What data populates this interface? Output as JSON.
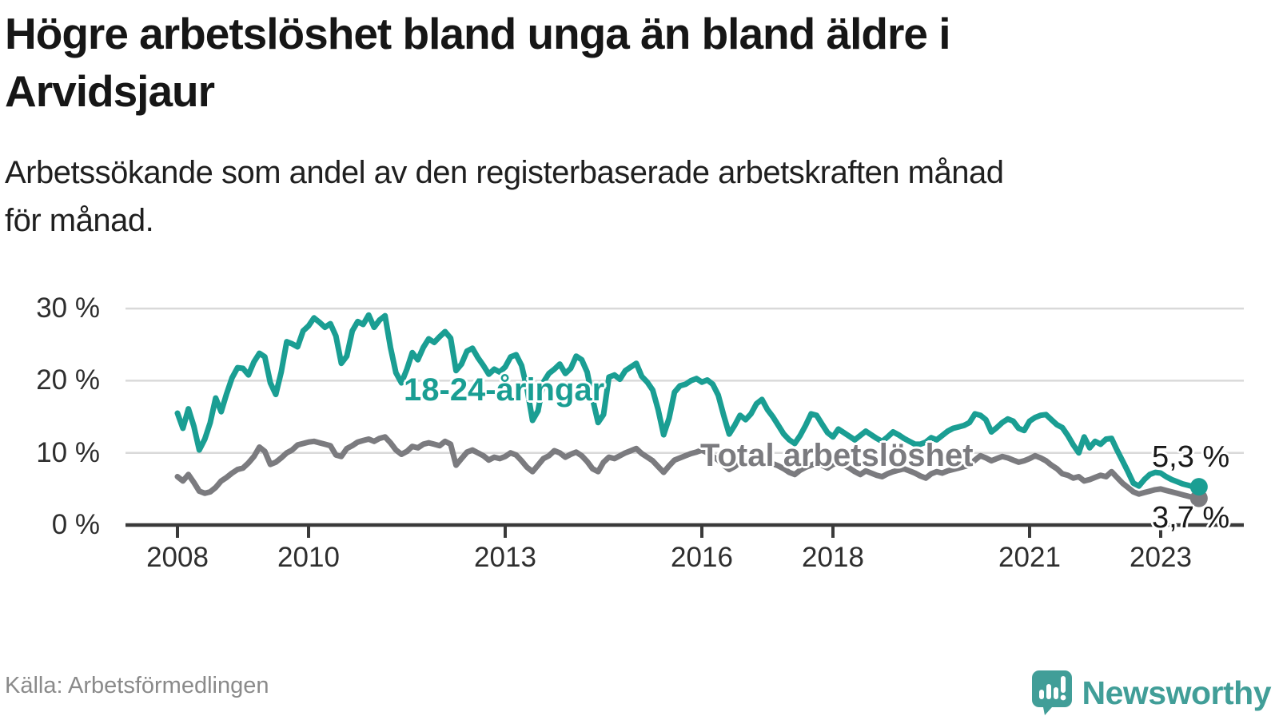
{
  "header": {
    "title_line1": "Högre arbetslöshet bland unga än bland äldre i",
    "title_line2": "Arvidsjaur",
    "subtitle_line1": "Arbetssökande som andel av den registerbaserade arbetskraften månad",
    "subtitle_line2": "för månad."
  },
  "footer": {
    "source": "Källa: Arbetsförmedlingen",
    "logo_text": "Newsworthy"
  },
  "colors": {
    "youth": "#1a9e93",
    "total": "#7b7b7f",
    "grid": "#d9d9d9",
    "axis": "#3a3a3a",
    "tick_label": "#2e2e2e",
    "value_label": "#1a1a1a",
    "logo": "#419e98"
  },
  "chart_data": {
    "type": "line",
    "title": "Högre arbetslöshet bland unga än bland äldre i Arvidsjaur",
    "subtitle": "Arbetssökande som andel av den registerbaserade arbetskraften månad för månad.",
    "xlabel": "",
    "ylabel": "",
    "x_start": "2008-01",
    "x_end": "2023-08",
    "x_frequency": "monthly",
    "x_tick_years": [
      2008,
      2010,
      2013,
      2016,
      2018,
      2021,
      2023
    ],
    "y_ticks": [
      {
        "value": 0,
        "label": "0 %"
      },
      {
        "value": 10,
        "label": "10 %"
      },
      {
        "value": 20,
        "label": "20 %"
      },
      {
        "value": 30,
        "label": "30 %"
      }
    ],
    "ylim": [
      0,
      31
    ],
    "grid": "horizontal",
    "legend_position": "inline-labels",
    "series": [
      {
        "name": "18-24-åringar",
        "color": "#1a9e93",
        "end_label": "5,3 %",
        "last_value": 5.3,
        "values": [
          15.5,
          13.4,
          16.1,
          13.7,
          10.4,
          11.9,
          14.2,
          17.6,
          15.7,
          18.2,
          20.4,
          21.8,
          21.7,
          20.8,
          22.6,
          23.8,
          23.3,
          19.7,
          18.1,
          21.2,
          25.4,
          25.1,
          24.7,
          26.9,
          27.6,
          28.7,
          28.1,
          27.4,
          27.9,
          26.2,
          22.4,
          23.4,
          26.9,
          28.2,
          27.8,
          29.1,
          27.4,
          28.4,
          29.0,
          24.6,
          21.1,
          19.7,
          21.6,
          23.9,
          22.9,
          24.6,
          25.8,
          25.3,
          26.1,
          26.8,
          25.9,
          21.4,
          22.3,
          24.1,
          24.5,
          23.2,
          22.1,
          20.9,
          21.6,
          21.2,
          21.9,
          23.3,
          23.6,
          22.1,
          18.9,
          14.5,
          15.8,
          19.8,
          21.0,
          21.6,
          22.3,
          21.0,
          21.7,
          23.4,
          22.9,
          21.2,
          17.5,
          14.2,
          15.3,
          20.5,
          20.8,
          20.2,
          21.4,
          21.9,
          22.4,
          20.6,
          19.8,
          18.7,
          16.0,
          12.5,
          14.8,
          18.4,
          19.3,
          19.5,
          20.0,
          20.3,
          19.8,
          20.1,
          19.5,
          18.0,
          15.2,
          12.6,
          13.8,
          15.2,
          14.6,
          15.4,
          16.8,
          17.4,
          16.0,
          15.0,
          13.8,
          12.6,
          11.8,
          11.3,
          12.4,
          13.8,
          15.4,
          15.2,
          14.0,
          12.8,
          12.2,
          13.3,
          12.8,
          12.3,
          11.8,
          12.4,
          13.0,
          12.5,
          12.0,
          11.6,
          12.2,
          12.9,
          12.5,
          12.0,
          11.6,
          11.2,
          11.2,
          11.5,
          12.1,
          11.8,
          12.4,
          13.0,
          13.4,
          13.6,
          13.8,
          14.2,
          15.4,
          15.2,
          14.6,
          12.9,
          13.5,
          14.2,
          14.7,
          14.4,
          13.4,
          13.1,
          14.4,
          14.9,
          15.2,
          15.3,
          14.6,
          13.9,
          13.5,
          12.4,
          11.1,
          10.0,
          12.2,
          10.7,
          11.6,
          11.2,
          11.9,
          12.0,
          10.4,
          8.9,
          7.4,
          5.8,
          5.4,
          6.3,
          7.0,
          7.3,
          7.2,
          6.7,
          6.3,
          6.0,
          5.7,
          5.5,
          5.3,
          5.3
        ]
      },
      {
        "name": "Total arbetslöshet",
        "color": "#7b7b7f",
        "end_label": "3,7 %",
        "last_value": 3.7,
        "values": [
          6.7,
          6.1,
          7.0,
          5.9,
          4.7,
          4.4,
          4.6,
          5.2,
          6.1,
          6.6,
          7.2,
          7.7,
          7.9,
          8.6,
          9.5,
          10.8,
          10.2,
          8.4,
          8.7,
          9.3,
          10.0,
          10.4,
          11.1,
          11.3,
          11.5,
          11.6,
          11.4,
          11.2,
          11.0,
          9.7,
          9.5,
          10.6,
          11.0,
          11.5,
          11.7,
          11.9,
          11.6,
          12.0,
          12.2,
          11.4,
          10.4,
          9.8,
          10.2,
          10.9,
          10.7,
          11.2,
          11.4,
          11.2,
          11.0,
          11.6,
          11.2,
          8.3,
          9.2,
          10.1,
          10.4,
          10.0,
          9.6,
          9.0,
          9.4,
          9.2,
          9.5,
          10.0,
          9.7,
          8.9,
          8.0,
          7.4,
          8.3,
          9.2,
          9.6,
          10.3,
          10.0,
          9.4,
          9.8,
          10.1,
          9.6,
          8.8,
          7.8,
          7.4,
          8.7,
          9.4,
          9.2,
          9.6,
          10.0,
          10.3,
          10.6,
          9.9,
          9.4,
          8.9,
          8.1,
          7.3,
          8.2,
          9.0,
          9.3,
          9.6,
          9.9,
          10.1,
          10.4,
          10.0,
          9.5,
          9.0,
          8.3,
          7.7,
          8.1,
          8.7,
          8.6,
          8.9,
          9.2,
          9.0,
          8.8,
          8.5,
          8.2,
          7.8,
          7.3,
          7.0,
          7.6,
          8.0,
          8.3,
          8.6,
          8.3,
          7.9,
          8.4,
          8.6,
          8.3,
          7.9,
          7.4,
          7.0,
          7.5,
          7.2,
          6.9,
          6.7,
          7.1,
          7.4,
          7.6,
          7.8,
          7.5,
          7.2,
          6.8,
          6.5,
          7.1,
          7.4,
          7.2,
          7.5,
          7.7,
          7.9,
          8.1,
          8.3,
          9.0,
          9.6,
          9.3,
          8.9,
          9.2,
          9.5,
          9.3,
          9.0,
          8.7,
          8.9,
          9.2,
          9.6,
          9.3,
          8.9,
          8.3,
          7.8,
          7.1,
          6.9,
          6.5,
          6.7,
          6.1,
          6.3,
          6.6,
          6.9,
          6.7,
          7.4,
          6.6,
          5.8,
          5.2,
          4.6,
          4.3,
          4.5,
          4.7,
          4.9,
          5.0,
          4.8,
          4.6,
          4.4,
          4.2,
          4.0,
          3.8,
          3.7
        ]
      }
    ]
  }
}
